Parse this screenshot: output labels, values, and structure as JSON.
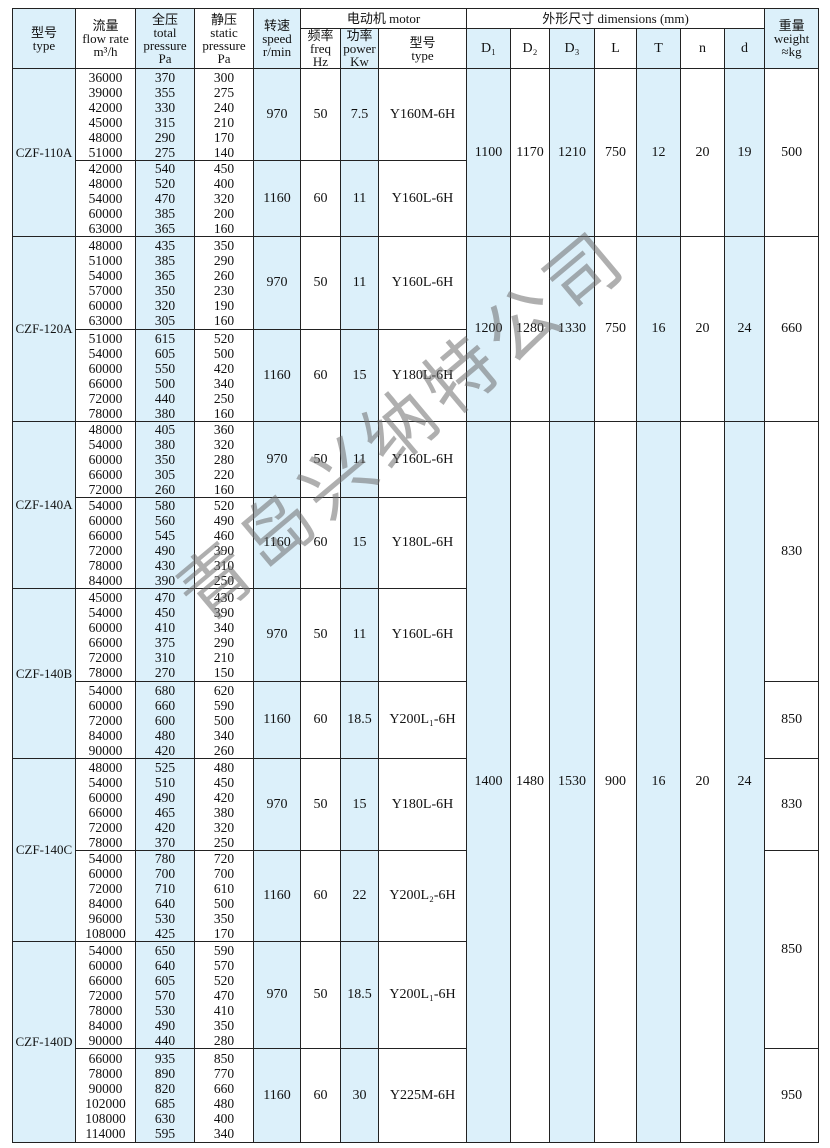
{
  "header": {
    "type": [
      "型号",
      "type"
    ],
    "flow": [
      "流量",
      "flow rate",
      "m³/h"
    ],
    "total": [
      "全压",
      "total",
      "pressure",
      "Pa"
    ],
    "static": [
      "静压",
      "static",
      "pressure",
      "Pa"
    ],
    "speed": [
      "转速",
      "speed",
      "r/min"
    ],
    "motor": "电动机  motor",
    "freq": [
      "频率",
      "freq",
      "Hz"
    ],
    "power": [
      "功率",
      "power",
      "Kw"
    ],
    "motor_type": [
      "型号",
      "type"
    ],
    "dimensions": "外形尺寸   dimensions (mm)",
    "dims": [
      "D₁",
      "D₂",
      "D₃",
      "L",
      "T",
      "n",
      "d"
    ],
    "weight": [
      "重量",
      "weight",
      "≈kg"
    ]
  },
  "colors": {
    "shade": "#dcf0fa",
    "border": "#222222"
  },
  "watermark": "青岛兴纳特公司",
  "groups": [
    {
      "type": "CZF-110A",
      "subs": [
        {
          "flow": [
            "36000",
            "39000",
            "42000",
            "45000",
            "48000",
            "51000"
          ],
          "total": [
            "370",
            "355",
            "330",
            "315",
            "290",
            "275"
          ],
          "static": [
            "300",
            "275",
            "240",
            "210",
            "170",
            "140"
          ],
          "speed": "970",
          "freq": "50",
          "power": "7.5",
          "motor": "Y160M-6H"
        },
        {
          "flow": [
            "42000",
            "48000",
            "54000",
            "60000",
            "63000"
          ],
          "total": [
            "540",
            "520",
            "470",
            "385",
            "365"
          ],
          "static": [
            "450",
            "400",
            "320",
            "200",
            "160"
          ],
          "speed": "1160",
          "freq": "60",
          "power": "11",
          "motor": "Y160L-6H"
        }
      ]
    },
    {
      "type": "CZF-120A",
      "subs": [
        {
          "flow": [
            "48000",
            "51000",
            "54000",
            "57000",
            "60000",
            "63000"
          ],
          "total": [
            "435",
            "385",
            "365",
            "350",
            "320",
            "305"
          ],
          "static": [
            "350",
            "290",
            "260",
            "230",
            "190",
            "160"
          ],
          "speed": "970",
          "freq": "50",
          "power": "11",
          "motor": "Y160L-6H"
        },
        {
          "flow": [
            "51000",
            "54000",
            "60000",
            "66000",
            "72000",
            "78000"
          ],
          "total": [
            "615",
            "605",
            "550",
            "500",
            "440",
            "380"
          ],
          "static": [
            "520",
            "500",
            "420",
            "340",
            "250",
            "160"
          ],
          "speed": "1160",
          "freq": "60",
          "power": "15",
          "motor": "Y180L-6H"
        }
      ]
    },
    {
      "type": "CZF-140A",
      "subs": [
        {
          "flow": [
            "48000",
            "54000",
            "60000",
            "66000",
            "72000"
          ],
          "total": [
            "405",
            "380",
            "350",
            "305",
            "260"
          ],
          "static": [
            "360",
            "320",
            "280",
            "220",
            "160"
          ],
          "speed": "970",
          "freq": "50",
          "power": "11",
          "motor": "Y160L-6H"
        },
        {
          "flow": [
            "54000",
            "60000",
            "66000",
            "72000",
            "78000",
            "84000"
          ],
          "total": [
            "580",
            "560",
            "545",
            "490",
            "430",
            "390"
          ],
          "static": [
            "520",
            "490",
            "460",
            "390",
            "310",
            "250"
          ],
          "speed": "1160",
          "freq": "60",
          "power": "15",
          "motor": "Y180L-6H"
        }
      ]
    },
    {
      "type": "CZF-140B",
      "subs": [
        {
          "flow": [
            "45000",
            "54000",
            "60000",
            "66000",
            "72000",
            "78000"
          ],
          "total": [
            "470",
            "450",
            "410",
            "375",
            "310",
            "270"
          ],
          "static": [
            "430",
            "390",
            "340",
            "290",
            "210",
            "150"
          ],
          "speed": "970",
          "freq": "50",
          "power": "11",
          "motor": "Y160L-6H"
        },
        {
          "flow": [
            "54000",
            "60000",
            "72000",
            "84000",
            "90000"
          ],
          "total": [
            "680",
            "660",
            "600",
            "480",
            "420"
          ],
          "static": [
            "620",
            "590",
            "500",
            "340",
            "260"
          ],
          "speed": "1160",
          "freq": "60",
          "power": "18.5",
          "motor": "Y200L₁-6H"
        }
      ]
    },
    {
      "type": "CZF-140C",
      "subs": [
        {
          "flow": [
            "48000",
            "54000",
            "60000",
            "66000",
            "72000",
            "78000"
          ],
          "total": [
            "525",
            "510",
            "490",
            "465",
            "420",
            "370"
          ],
          "static": [
            "480",
            "450",
            "420",
            "380",
            "320",
            "250"
          ],
          "speed": "970",
          "freq": "50",
          "power": "15",
          "motor": "Y180L-6H"
        },
        {
          "flow": [
            "54000",
            "60000",
            "72000",
            "84000",
            "96000",
            "108000"
          ],
          "total": [
            "780",
            "700",
            "710",
            "640",
            "530",
            "425"
          ],
          "static": [
            "720",
            "700",
            "610",
            "500",
            "350",
            "170"
          ],
          "speed": "1160",
          "freq": "60",
          "power": "22",
          "motor": "Y200L₂-6H"
        }
      ]
    },
    {
      "type": "CZF-140D",
      "subs": [
        {
          "flow": [
            "54000",
            "60000",
            "66000",
            "72000",
            "78000",
            "84000",
            "90000"
          ],
          "total": [
            "650",
            "640",
            "605",
            "570",
            "530",
            "490",
            "440"
          ],
          "static": [
            "590",
            "570",
            "520",
            "470",
            "410",
            "350",
            "280"
          ],
          "speed": "970",
          "freq": "50",
          "power": "18.5",
          "motor": "Y200L₁-6H"
        },
        {
          "flow": [
            "66000",
            "78000",
            "90000",
            "102000",
            "108000",
            "114000"
          ],
          "total": [
            "935",
            "890",
            "820",
            "685",
            "630",
            "595"
          ],
          "static": [
            "850",
            "770",
            "660",
            "480",
            "400",
            "340"
          ],
          "speed": "1160",
          "freq": "60",
          "power": "30",
          "motor": "Y225M-6H"
        }
      ]
    }
  ],
  "dimension_blocks": [
    {
      "rows_covered": "CZF-110A",
      "values": [
        "1100",
        "1170",
        "1210",
        "750",
        "12",
        "20",
        "19"
      ]
    },
    {
      "rows_covered": "CZF-120A",
      "values": [
        "1200",
        "1280",
        "1330",
        "750",
        "16",
        "20",
        "24"
      ]
    },
    {
      "rows_covered": "CZF-140A–CZF-140D",
      "values": [
        "1400",
        "1480",
        "1530",
        "900",
        "16",
        "20",
        "24"
      ]
    }
  ],
  "weights": [
    {
      "value": "500",
      "rows": "CZF-110A"
    },
    {
      "value": "660",
      "rows": "CZF-120A"
    },
    {
      "value": "830",
      "rows": "CZF-140A, CZF-140B 970"
    },
    {
      "value": "850",
      "rows": "CZF-140B 1160"
    },
    {
      "value": "830",
      "rows": "CZF-140C 970"
    },
    {
      "value": "850",
      "rows": "CZF-140C 1160, CZF-140D 970"
    },
    {
      "value": "950",
      "rows": "CZF-140D 1160"
    }
  ]
}
